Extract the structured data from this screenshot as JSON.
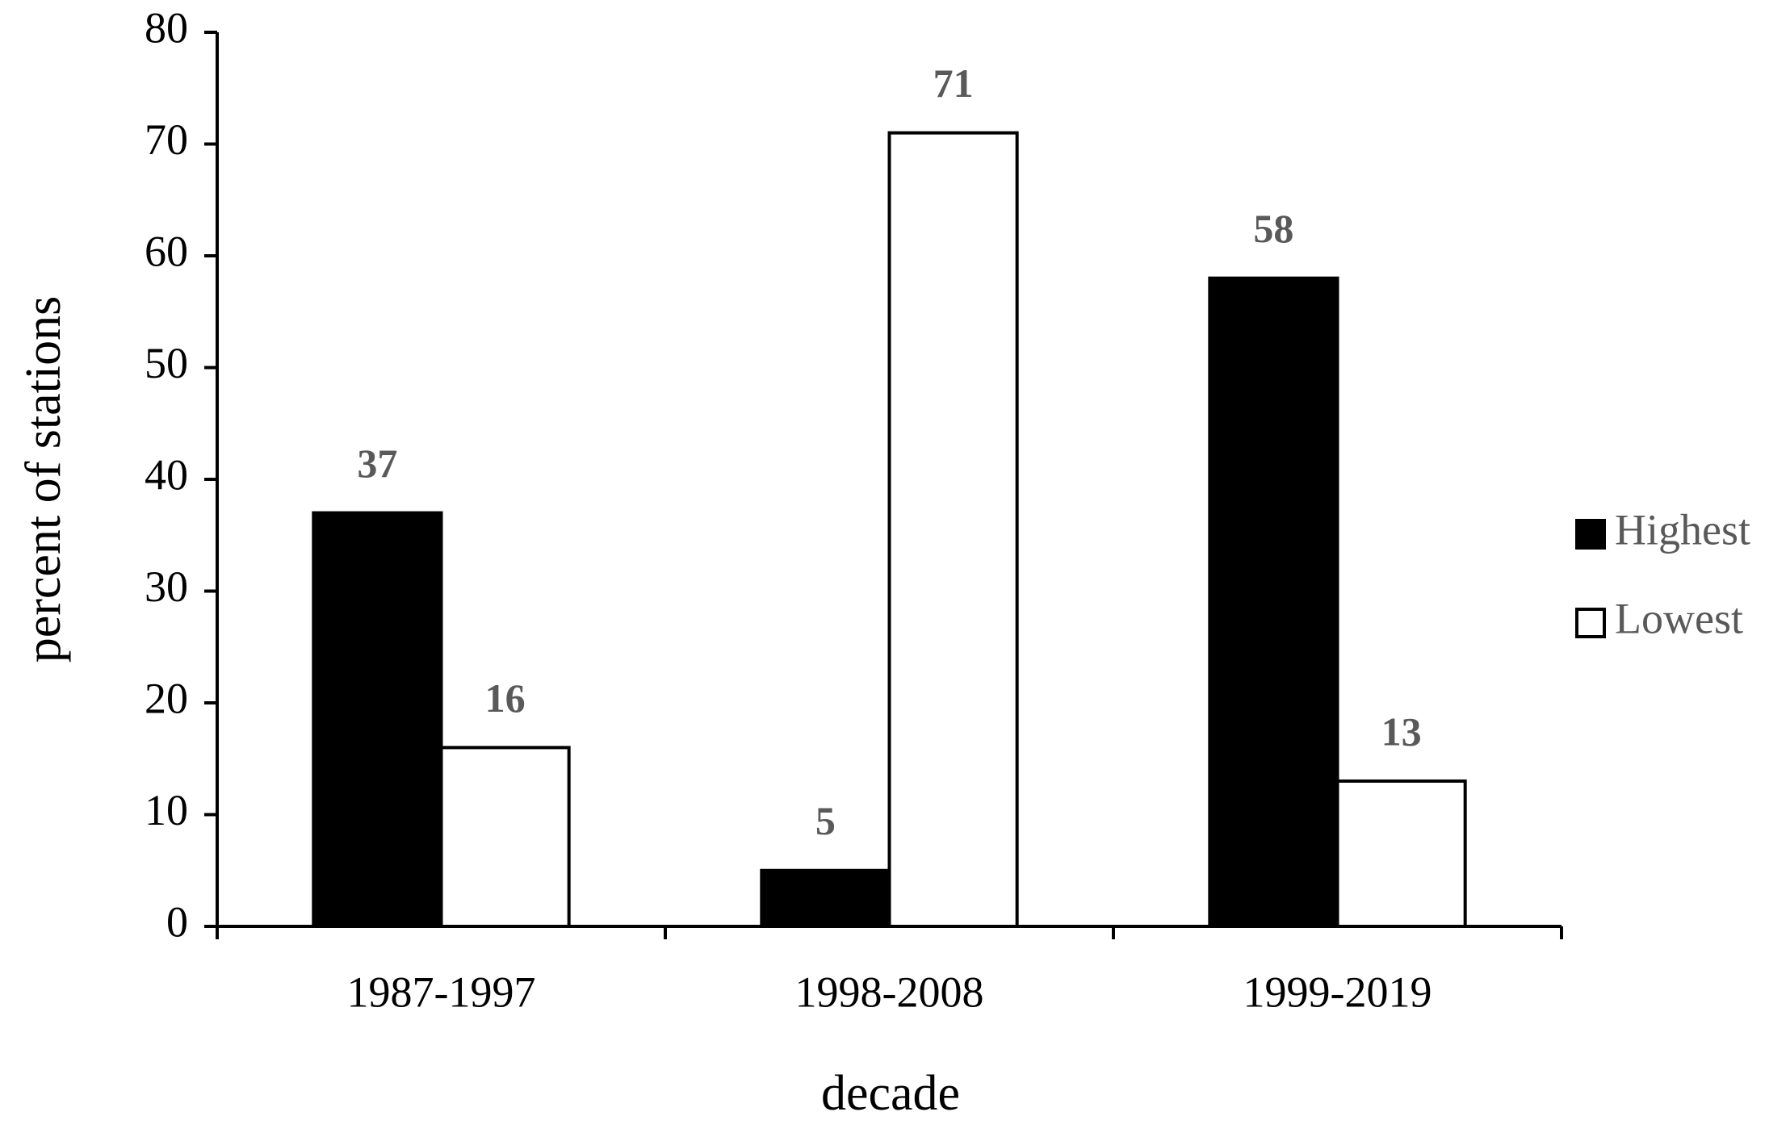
{
  "chart_data": {
    "type": "bar",
    "x_label": "decade",
    "y_label": "percent of stations",
    "categories": [
      "1987-1997",
      "1998-2008",
      "1999-2019"
    ],
    "series": [
      {
        "name": "Highest",
        "color": "#000000",
        "values": [
          37,
          5,
          58
        ]
      },
      {
        "name": "Lowest",
        "color": "#ffffff",
        "values": [
          16,
          71,
          13
        ]
      }
    ],
    "ylim": [
      0,
      80
    ],
    "yticks": [
      0,
      10,
      20,
      30,
      40,
      50,
      60,
      70,
      80
    ],
    "grid": false,
    "legend": "right",
    "data_labels": true
  }
}
